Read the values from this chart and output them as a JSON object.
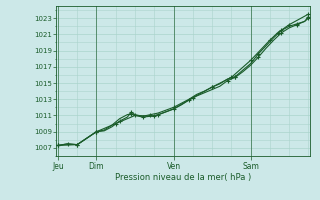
{
  "xlabel": "Pression niveau de la mer( hPa )",
  "background_color": "#cce8e8",
  "grid_color": "#aad4cc",
  "line_color": "#1a5c2a",
  "yticks": [
    1007,
    1009,
    1011,
    1013,
    1015,
    1017,
    1019,
    1021,
    1023
  ],
  "ylim": [
    1006.0,
    1024.5
  ],
  "xlim": [
    -0.05,
    6.55
  ],
  "day_positions": [
    0.0,
    1.0,
    3.0,
    5.0
  ],
  "day_labels": [
    "Jeu",
    "Dim",
    "Ven",
    "Sam"
  ],
  "series": [
    [
      0.0,
      1007.3,
      0.25,
      1007.5,
      0.5,
      1007.4,
      1.0,
      1009.0,
      1.2,
      1009.2,
      1.4,
      1009.8,
      1.6,
      1010.6,
      1.8,
      1011.1,
      1.9,
      1011.2,
      2.0,
      1011.0,
      2.2,
      1010.8,
      2.4,
      1010.9,
      2.6,
      1011.1,
      3.0,
      1011.8,
      3.2,
      1012.3,
      3.4,
      1012.9,
      3.6,
      1013.4,
      3.8,
      1013.8,
      4.0,
      1014.2,
      4.2,
      1014.6,
      4.4,
      1015.3,
      4.6,
      1015.7,
      4.8,
      1016.4,
      5.0,
      1017.2,
      5.2,
      1018.2,
      5.4,
      1019.3,
      5.6,
      1020.3,
      5.8,
      1021.2,
      6.0,
      1021.8,
      6.2,
      1022.2,
      6.4,
      1022.6,
      6.5,
      1023.0
    ],
    [
      0.0,
      1007.3,
      0.25,
      1007.5,
      0.5,
      1007.4,
      1.0,
      1009.0,
      1.2,
      1009.1,
      1.4,
      1009.6,
      1.6,
      1010.3,
      1.8,
      1010.8,
      1.9,
      1011.4,
      2.0,
      1011.1,
      2.2,
      1010.9,
      2.4,
      1011.1,
      2.6,
      1011.3,
      3.0,
      1012.0,
      3.2,
      1012.5,
      3.4,
      1013.0,
      3.6,
      1013.6,
      3.8,
      1014.0,
      4.0,
      1014.5,
      4.2,
      1014.9,
      4.4,
      1015.5,
      4.6,
      1015.8,
      4.8,
      1016.6,
      5.0,
      1017.4,
      5.2,
      1018.6,
      5.4,
      1019.6,
      5.6,
      1020.6,
      5.8,
      1021.5,
      6.0,
      1022.0,
      6.2,
      1022.3,
      6.4,
      1022.6,
      6.5,
      1023.2
    ],
    [
      0.0,
      1007.3,
      0.5,
      1007.4,
      1.0,
      1009.0,
      1.5,
      1010.0,
      2.0,
      1011.0,
      2.5,
      1010.9,
      3.0,
      1011.8,
      3.5,
      1013.2,
      4.0,
      1014.5,
      4.5,
      1015.7,
      5.0,
      1017.8,
      5.5,
      1020.3,
      5.7,
      1021.2,
      6.0,
      1022.2,
      6.5,
      1023.5
    ]
  ],
  "markers": [
    [
      [
        0.0,
        1007.3
      ],
      [
        0.25,
        1007.5
      ],
      [
        1.0,
        1009.0
      ],
      [
        1.9,
        1011.2
      ],
      [
        2.2,
        1010.8
      ],
      [
        2.6,
        1011.1
      ],
      [
        3.4,
        1012.9
      ],
      [
        4.4,
        1015.3
      ],
      [
        4.6,
        1015.7
      ],
      [
        5.2,
        1018.2
      ],
      [
        5.8,
        1021.2
      ],
      [
        6.2,
        1022.2
      ],
      [
        6.5,
        1023.0
      ]
    ],
    [
      [
        0.0,
        1007.3
      ],
      [
        0.5,
        1007.4
      ],
      [
        1.0,
        1009.0
      ],
      [
        1.6,
        1010.3
      ],
      [
        1.9,
        1011.4
      ],
      [
        2.4,
        1011.1
      ],
      [
        3.0,
        1012.0
      ],
      [
        4.0,
        1014.5
      ],
      [
        4.6,
        1015.8
      ],
      [
        5.2,
        1018.6
      ],
      [
        5.8,
        1021.5
      ],
      [
        6.2,
        1022.3
      ],
      [
        6.5,
        1023.2
      ]
    ],
    [
      [
        0.0,
        1007.3
      ],
      [
        0.5,
        1007.4
      ],
      [
        1.0,
        1009.0
      ],
      [
        1.5,
        1010.0
      ],
      [
        2.0,
        1011.0
      ],
      [
        2.5,
        1010.9
      ],
      [
        3.0,
        1011.8
      ],
      [
        3.5,
        1013.2
      ],
      [
        4.0,
        1014.5
      ],
      [
        4.5,
        1015.7
      ],
      [
        5.0,
        1017.8
      ],
      [
        5.5,
        1020.3
      ],
      [
        5.7,
        1021.2
      ],
      [
        6.0,
        1022.2
      ],
      [
        6.5,
        1023.5
      ]
    ]
  ]
}
